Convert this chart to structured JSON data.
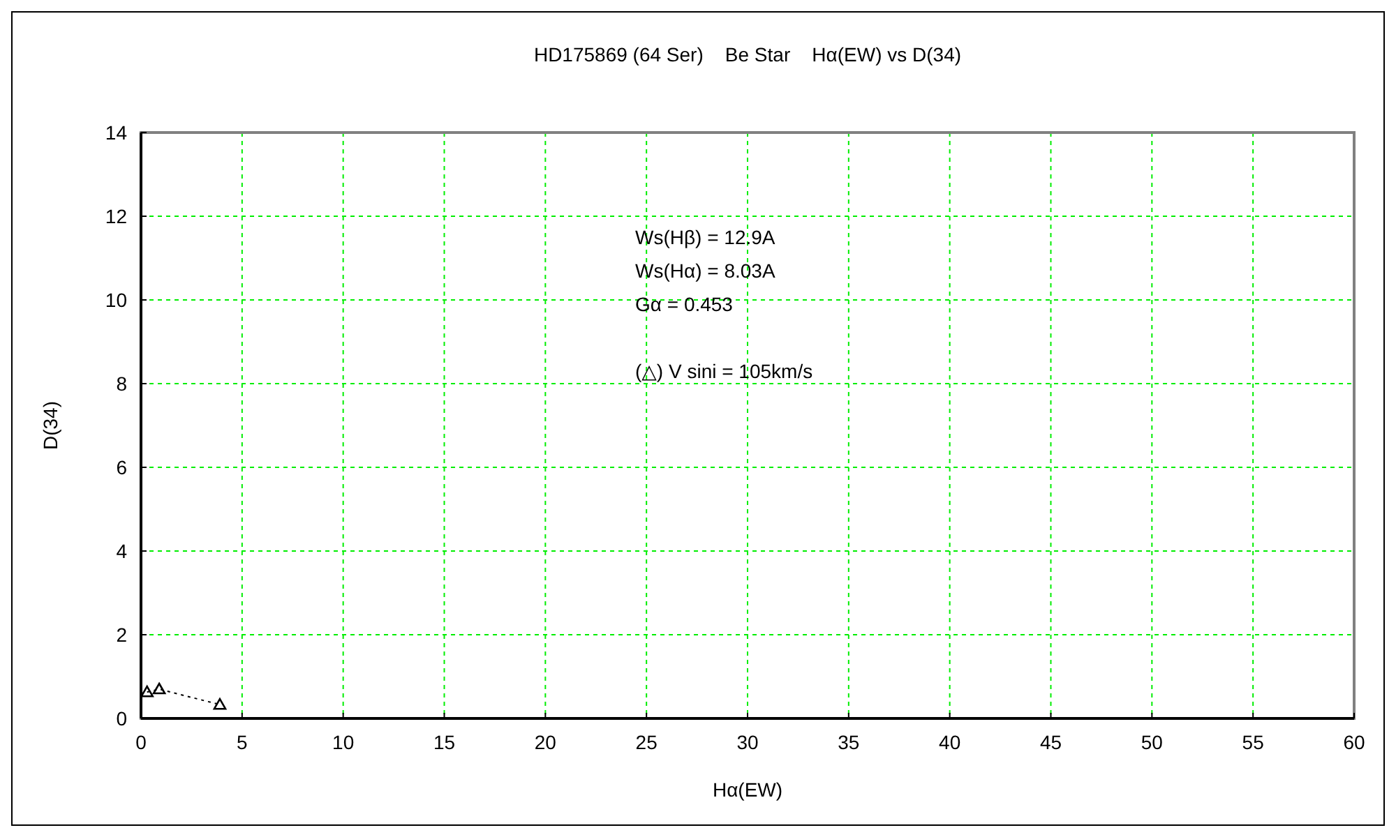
{
  "chart_data": {
    "type": "line",
    "title": "HD175869 (64 Ser)    Be Star    Hα(EW) vs D(34)",
    "xlabel": "Hα(EW)",
    "ylabel": "D(34)",
    "annotations": [
      "Ws(Hβ) = 12.9A",
      "Ws(Hα) = 8.03A",
      "Gα = 0.453",
      "(△) V sini = 105km/s"
    ],
    "series": [
      {
        "x": [
          0.3,
          0.9,
          3.9
        ],
        "values": [
          0.63,
          0.7,
          0.33
        ],
        "color": "#000000"
      }
    ],
    "xlim": [
      0,
      60
    ],
    "xticks": [
      0,
      5,
      10,
      15,
      20,
      25,
      30,
      35,
      40,
      45,
      50,
      55,
      60
    ],
    "ylim": [
      0,
      14
    ],
    "yticks": [
      0,
      2,
      4,
      6,
      8,
      10,
      12,
      14
    ],
    "grid": true,
    "marker": "triangle",
    "line_style": "dotted"
  }
}
